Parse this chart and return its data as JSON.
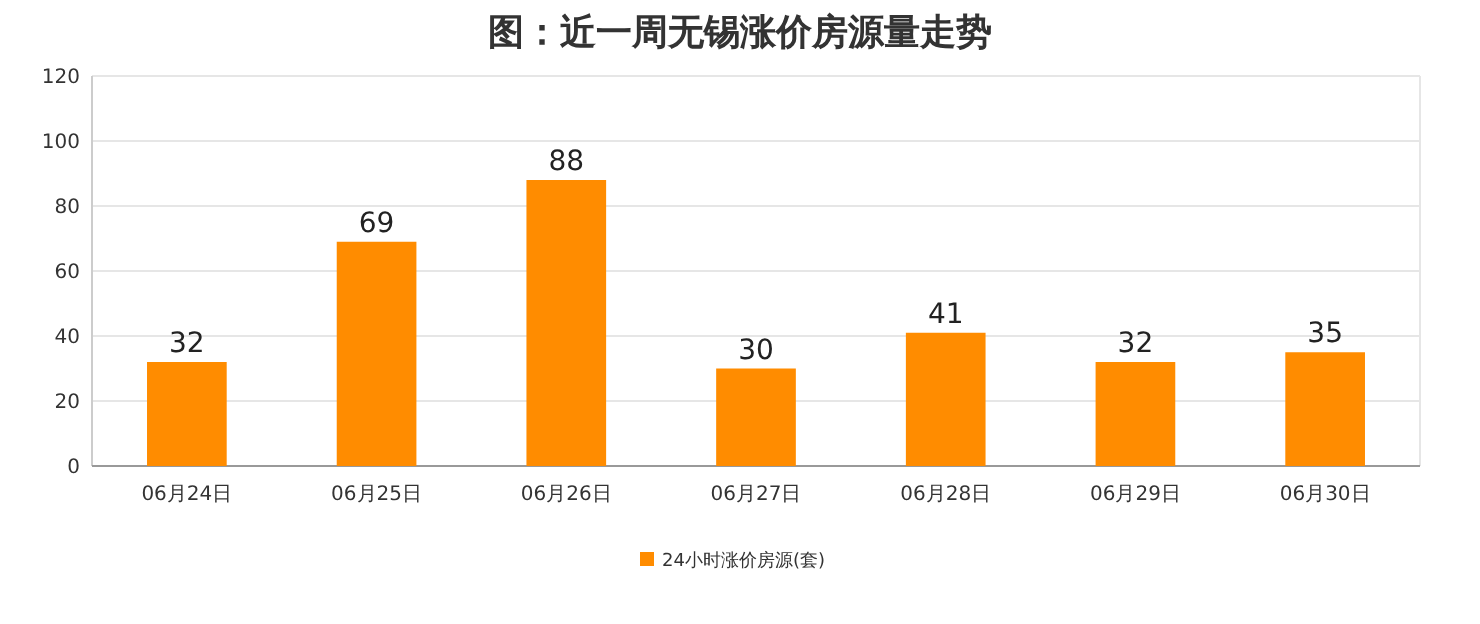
{
  "chart_data": {
    "type": "bar",
    "title": "图：近一周无锡涨价房源量走势",
    "categories": [
      "06月24日",
      "06月25日",
      "06月26日",
      "06月27日",
      "06月28日",
      "06月29日",
      "06月30日"
    ],
    "series": [
      {
        "name": "24小时涨价房源(套)",
        "color": "#ff8c00",
        "values": [
          32,
          69,
          88,
          30,
          41,
          32,
          35
        ]
      }
    ],
    "ylim": [
      0,
      120
    ],
    "yticks": [
      0,
      20,
      40,
      60,
      80,
      100,
      120
    ],
    "grid": "y",
    "data_labels": true,
    "legend": "bottom"
  }
}
